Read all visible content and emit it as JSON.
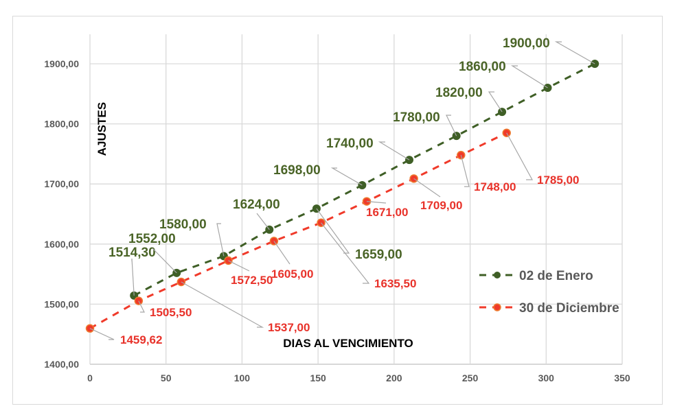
{
  "chart_data": {
    "type": "line",
    "title": "",
    "xlabel": "DIAS AL VENCIMIENTO",
    "ylabel": "AJUSTES",
    "xlim": [
      0,
      350
    ],
    "ylim": [
      1400,
      1900
    ],
    "x_ticks": [
      "0",
      "50",
      "100",
      "150",
      "200",
      "250",
      "300",
      "350"
    ],
    "y_ticks": [
      "1400,00",
      "1500,00",
      "1600,00",
      "1700,00",
      "1800,00",
      "1900,00"
    ],
    "grid": true,
    "legend_position": "right",
    "series": [
      {
        "name": "02 de Enero",
        "color": "#3f5f26",
        "label_color": "#4a6427",
        "line_style": "dashed",
        "marker": "circle",
        "x": [
          29,
          57,
          88,
          118,
          149,
          179,
          210,
          241,
          271,
          301,
          332
        ],
        "y": [
          1514.3,
          1552.0,
          1580.0,
          1624.0,
          1659.0,
          1698.0,
          1740.0,
          1780.0,
          1820.0,
          1860.0,
          1900.0
        ],
        "labels": [
          "1514,30",
          "1552,00",
          "1580,00",
          "1624,00",
          "1659,00",
          "1698,00",
          "1740,00",
          "1780,00",
          "1820,00",
          "1860,00",
          "1900,00"
        ]
      },
      {
        "name": "30 de Diciembre",
        "color": "#f03a2a",
        "marker_ring": "#ed7d31",
        "label_color": "#e8322a",
        "line_style": "dashed",
        "marker": "circle",
        "x": [
          0,
          32,
          60,
          91,
          121,
          152,
          182,
          213,
          244,
          274
        ],
        "y": [
          1459.62,
          1505.5,
          1537.0,
          1572.5,
          1605.0,
          1635.5,
          1671.0,
          1709.0,
          1748.0,
          1785.0
        ],
        "labels": [
          "1459,62",
          "1505,50",
          "1537,00",
          "1572,50",
          "1605,00",
          "1635,50",
          "1671,00",
          "1709,00",
          "1748,00",
          "1785,00"
        ]
      }
    ]
  }
}
